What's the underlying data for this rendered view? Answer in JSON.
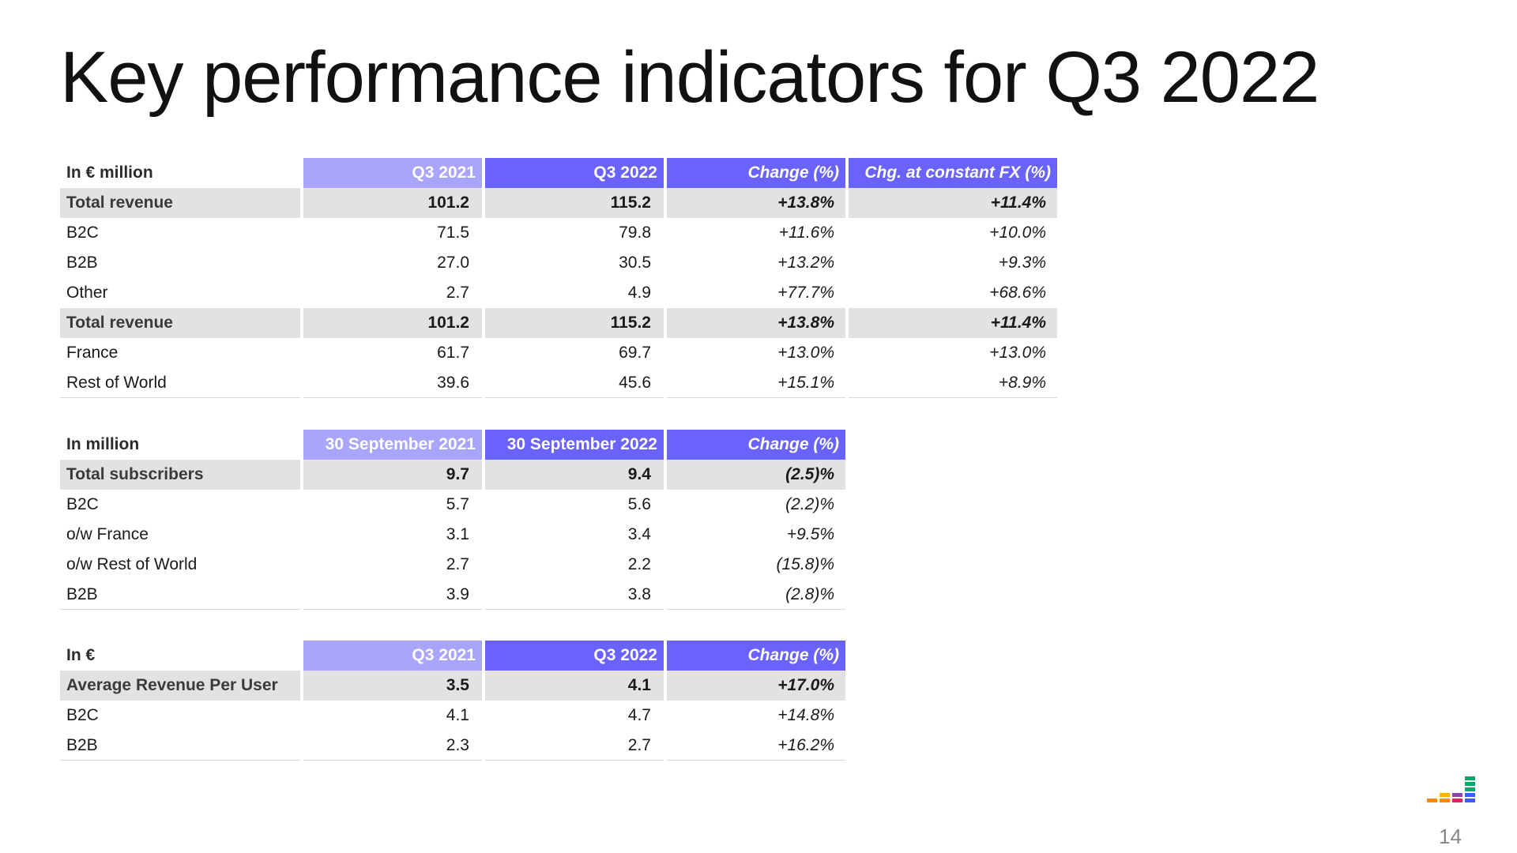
{
  "title": "Key performance indicators for Q3 2022",
  "revenue": {
    "headers": [
      "In € million",
      "Q3 2021",
      "Q3 2022",
      "Change  (%)",
      "Chg. at constant FX (%)"
    ],
    "rows": [
      {
        "label": "Total revenue",
        "v1": "101.2",
        "v2": "115.2",
        "chg": "+13.8%",
        "fx": "+11.4%"
      },
      {
        "label": "B2C",
        "v1": "71.5",
        "v2": "79.8",
        "chg": "+11.6%",
        "fx": "+10.0%"
      },
      {
        "label": "B2B",
        "v1": "27.0",
        "v2": "30.5",
        "chg": "+13.2%",
        "fx": "+9.3%"
      },
      {
        "label": "Other",
        "v1": "2.7",
        "v2": "4.9",
        "chg": "+77.7%",
        "fx": "+68.6%"
      },
      {
        "label": "Total revenue",
        "v1": "101.2",
        "v2": "115.2",
        "chg": "+13.8%",
        "fx": "+11.4%"
      },
      {
        "label": "France",
        "v1": "61.7",
        "v2": "69.7",
        "chg": "+13.0%",
        "fx": "+13.0%"
      },
      {
        "label": "Rest of World",
        "v1": "39.6",
        "v2": "45.6",
        "chg": "+15.1%",
        "fx": "+8.9%"
      }
    ]
  },
  "subscribers": {
    "headers": [
      "In million",
      "30 September 2021",
      "30 September 2022",
      "Change (%)"
    ],
    "rows": [
      {
        "label": "Total subscribers",
        "v1": "9.7",
        "v2": "9.4",
        "chg": "(2.5)%"
      },
      {
        "label": "B2C",
        "v1": "5.7",
        "v2": "5.6",
        "chg": "(2.2)%"
      },
      {
        "label": "o/w France",
        "v1": "3.1",
        "v2": "3.4",
        "chg": "+9.5%"
      },
      {
        "label": "o/w Rest of World",
        "v1": "2.7",
        "v2": "2.2",
        "chg": "(15.8)%"
      },
      {
        "label": "B2B",
        "v1": "3.9",
        "v2": "3.8",
        "chg": "(2.8)%"
      }
    ]
  },
  "arpu": {
    "headers": [
      "In €",
      "Q3 2021",
      "Q3 2022",
      "Change (%)"
    ],
    "rows": [
      {
        "label": "Average Revenue Per User",
        "v1": "3.5",
        "v2": "4.1",
        "chg": "+17.0%"
      },
      {
        "label": "B2C",
        "v1": "4.1",
        "v2": "4.7",
        "chg": "+14.8%"
      },
      {
        "label": "B2B",
        "v1": "2.3",
        "v2": "2.7",
        "chg": "+16.2%"
      }
    ]
  },
  "logo_colors": [
    "#ff8a00",
    "#ffb300",
    "#e0245e",
    "#8e44ad",
    "#3d5afe",
    "#00a86b"
  ],
  "page_number": "14"
}
